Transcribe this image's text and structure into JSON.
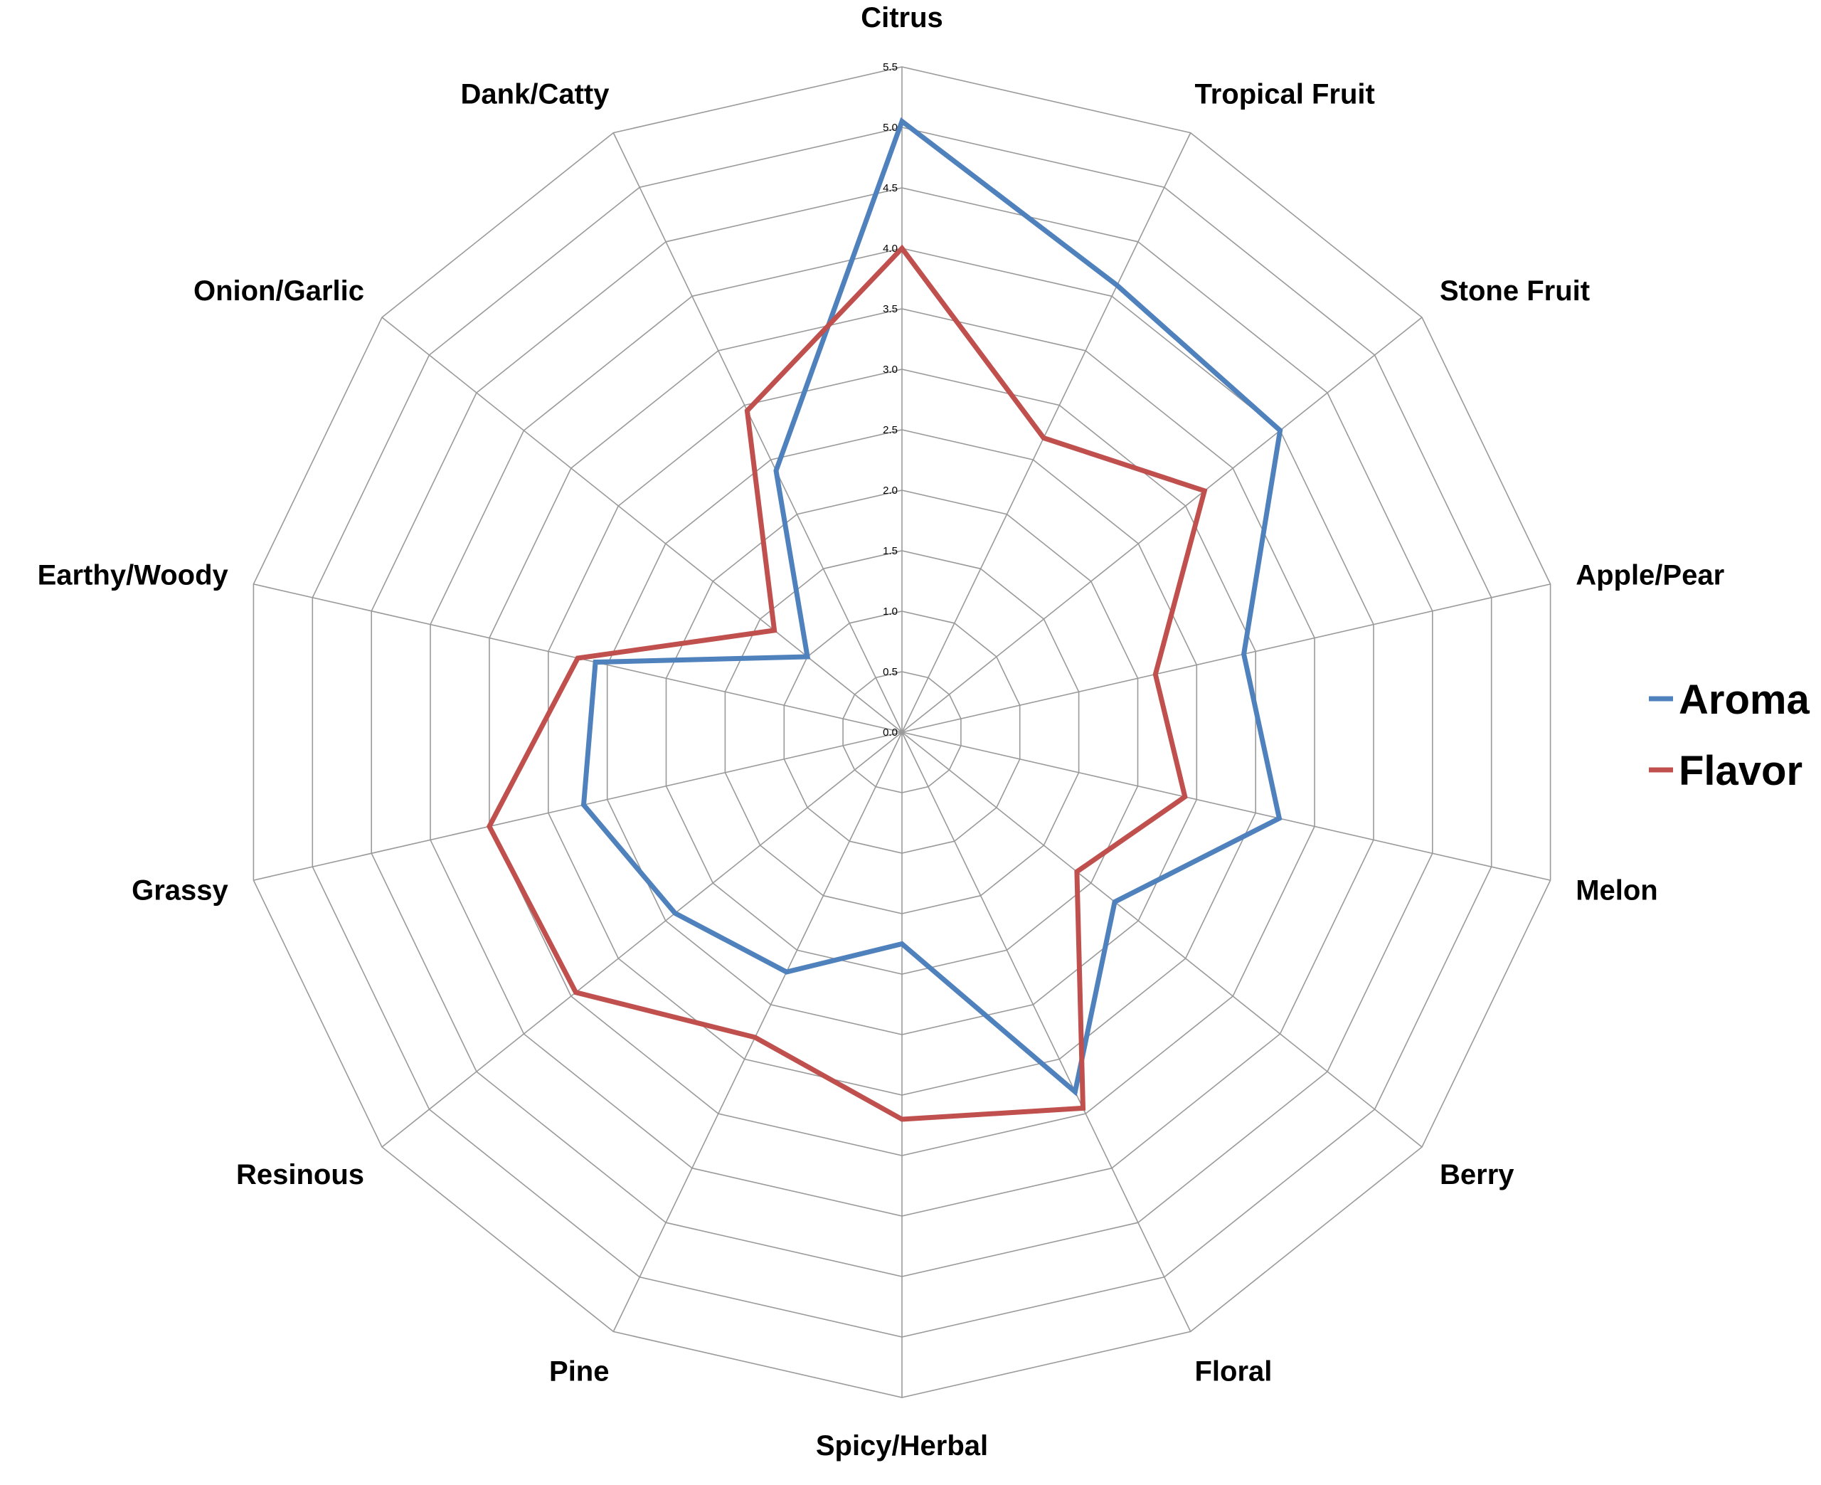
{
  "chart_data": {
    "type": "radar",
    "title": "",
    "categories": [
      "Citrus",
      "Tropical Fruit",
      "Stone Fruit",
      "Apple/Pear",
      "Melon",
      "Berry",
      "Floral",
      "Spicy/Herbal",
      "Pine",
      "Resinous",
      "Grassy",
      "Earthy/Woody",
      "Onion/Garlic",
      "Dank/Catty"
    ],
    "ticks": [
      "0.0",
      "0.5",
      "1.0",
      "1.5",
      "2.0",
      "2.5",
      "3.0",
      "3.5",
      "4.0",
      "4.5",
      "5.0",
      "5.5"
    ],
    "rlim": [
      0,
      5.5
    ],
    "grid": true,
    "legend_position": "right",
    "series": [
      {
        "name": "Aroma",
        "color": "#4f81bd",
        "values": [
          5.05,
          4.1,
          4.0,
          2.9,
          3.2,
          2.25,
          3.3,
          1.75,
          2.2,
          2.4,
          2.7,
          2.6,
          1.0,
          2.4
        ]
      },
      {
        "name": "Flavor",
        "color": "#c0504d",
        "values": [
          4.0,
          2.7,
          3.2,
          2.15,
          2.4,
          1.85,
          3.45,
          3.2,
          2.8,
          3.45,
          3.5,
          2.75,
          1.35,
          2.95
        ]
      }
    ]
  }
}
